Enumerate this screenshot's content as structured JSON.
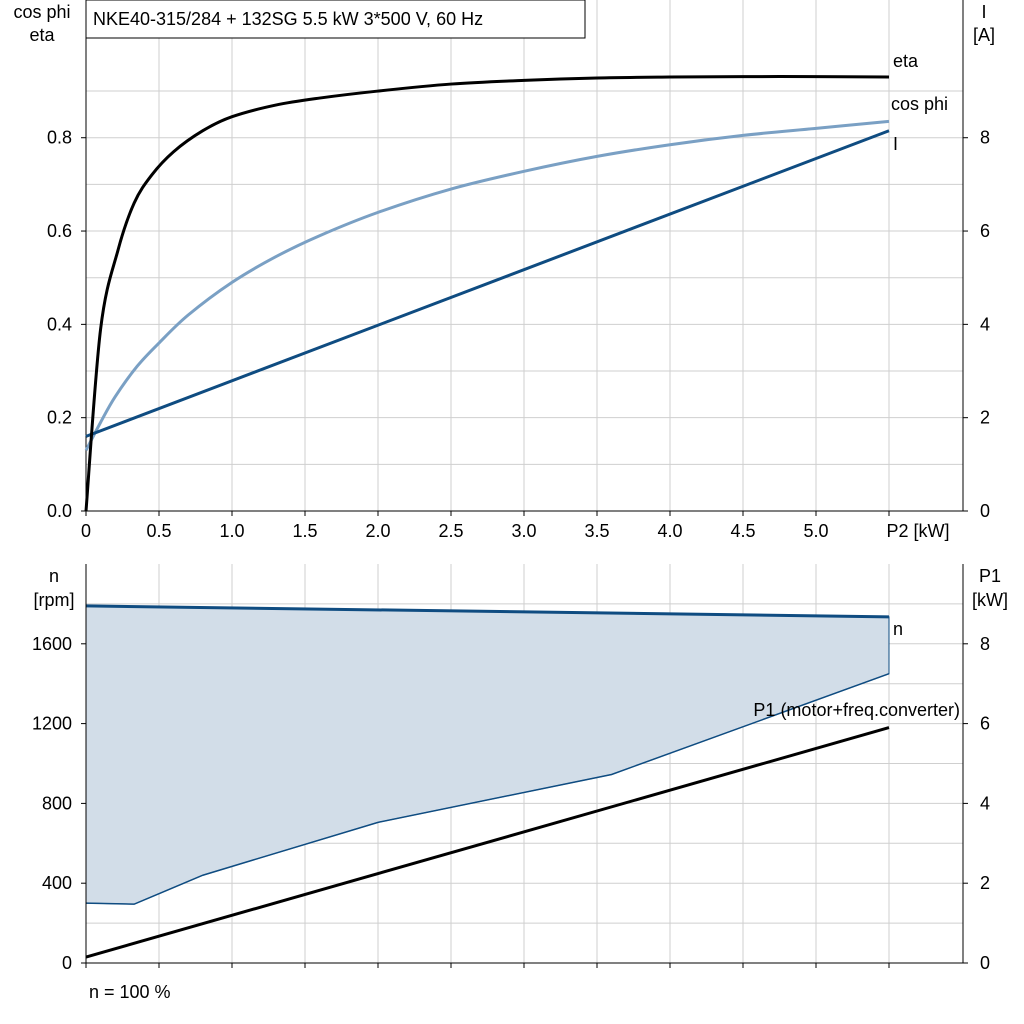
{
  "title": "NKE40-315/284 + 132SG   5.5 kW   3*500 V, 60 Hz",
  "footer": "n = 100 %",
  "colors": {
    "eta": "#000000",
    "cos_phi": "#7aa0c4",
    "current": "#0f4c81",
    "speed": "#0f4c81",
    "speed_fill": "#d2dde8",
    "p1": "#000000",
    "grid": "#cfcfcf"
  },
  "chart_data": [
    {
      "type": "line",
      "xlabel": "P2 [kW]",
      "ylabel_left": [
        "cos phi",
        "eta"
      ],
      "ylabel_right": [
        "I",
        "[A]"
      ],
      "xlim": [
        0,
        6
      ],
      "ylim_left": [
        0,
        1.0
      ],
      "ylim_right": [
        0,
        10
      ],
      "x_ticks": [
        "0",
        "0.5",
        "1.0",
        "1.5",
        "2.0",
        "2.5",
        "3.0",
        "3.5",
        "4.0",
        "4.5",
        "5.0"
      ],
      "y_ticks_left": [
        "0.0",
        "0.2",
        "0.4",
        "0.6",
        "0.8"
      ],
      "y_ticks_right": [
        "0",
        "2",
        "4",
        "6",
        "8"
      ],
      "grid": true,
      "series": [
        {
          "name": "eta",
          "axis": "left",
          "x": [
            0,
            0.1,
            0.22,
            0.33,
            0.45,
            0.6,
            0.8,
            1.0,
            1.3,
            1.6,
            2.0,
            2.5,
            3.0,
            3.5,
            4.0,
            4.5,
            5.0,
            5.5
          ],
          "y": [
            0.0,
            0.39,
            0.56,
            0.66,
            0.72,
            0.77,
            0.815,
            0.845,
            0.87,
            0.885,
            0.9,
            0.915,
            0.923,
            0.928,
            0.93,
            0.931,
            0.931,
            0.93
          ]
        },
        {
          "name": "cos phi",
          "axis": "left",
          "x": [
            0,
            0.1,
            0.2,
            0.35,
            0.5,
            0.7,
            1.0,
            1.3,
            1.6,
            2.0,
            2.5,
            3.0,
            3.5,
            4.0,
            4.5,
            5.0,
            5.5
          ],
          "y": [
            0.13,
            0.19,
            0.245,
            0.31,
            0.36,
            0.42,
            0.49,
            0.545,
            0.59,
            0.64,
            0.69,
            0.728,
            0.76,
            0.785,
            0.805,
            0.82,
            0.835
          ]
        },
        {
          "name": "I",
          "axis": "right",
          "x": [
            0,
            5.5
          ],
          "y": [
            1.6,
            8.15
          ]
        }
      ]
    },
    {
      "type": "area",
      "xlabel": "",
      "ylabel_left": [
        "n",
        "[rpm]"
      ],
      "ylabel_right": [
        "P1",
        "[kW]"
      ],
      "xlim": [
        0,
        6
      ],
      "ylim_left": [
        0,
        1800
      ],
      "ylim_right": [
        0,
        9
      ],
      "y_ticks_left": [
        "0",
        "400",
        "800",
        "1200",
        "1600"
      ],
      "y_ticks_right": [
        "0",
        "2",
        "4",
        "6",
        "8"
      ],
      "grid": true,
      "series": [
        {
          "name": "n",
          "axis": "left",
          "x": [
            0,
            5.5
          ],
          "y": [
            1790,
            1735
          ]
        },
        {
          "name": "",
          "axis": "left",
          "x": [
            0,
            0.33,
            0.8,
            2.0,
            3.6,
            5.5
          ],
          "y": [
            300,
            295,
            440,
            705,
            945,
            1450
          ]
        },
        {
          "name": "P1 (motor+freq.converter)",
          "axis": "right",
          "x": [
            0,
            5.5
          ],
          "y": [
            0.15,
            5.9
          ]
        }
      ]
    }
  ]
}
